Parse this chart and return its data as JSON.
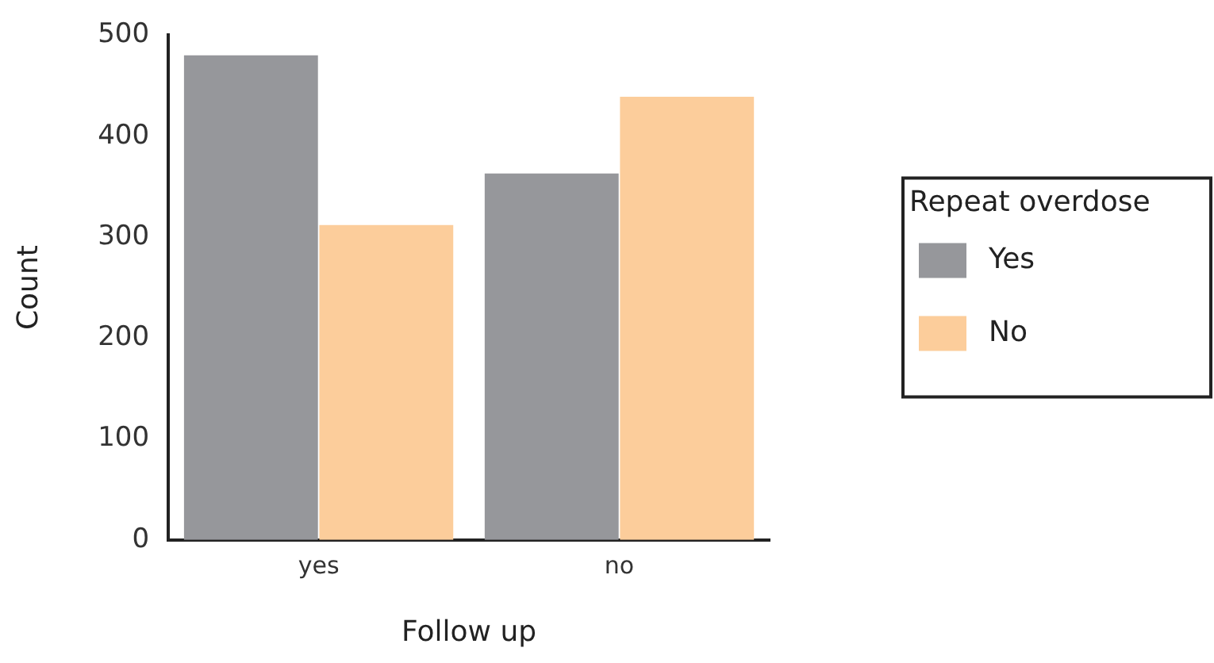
{
  "chart_data": {
    "type": "bar",
    "xlabel": "Follow up",
    "ylabel": "Count",
    "legend_title": "Repeat overdose",
    "categories": [
      "yes",
      "no"
    ],
    "series": [
      {
        "name": "Yes",
        "color": "#96979b",
        "values": [
          480,
          363
        ]
      },
      {
        "name": "No",
        "color": "#fccd9b",
        "values": [
          312,
          439
        ]
      }
    ],
    "ylim": [
      0,
      500
    ],
    "yticks": [
      0,
      100,
      200,
      300,
      400,
      500
    ],
    "grid": false,
    "legend": "right"
  }
}
